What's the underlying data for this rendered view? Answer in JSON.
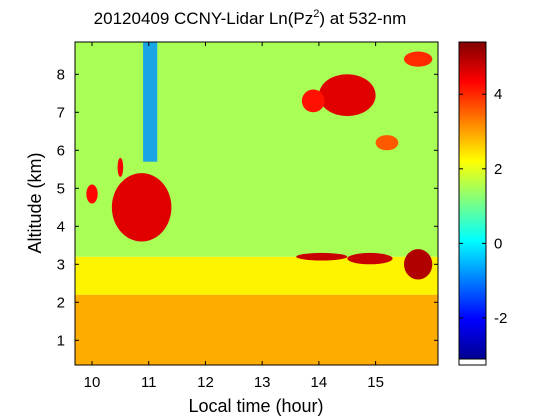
{
  "chart_data": {
    "type": "heatmap",
    "title": {
      "prefix": "20120409 CCNY-Lidar Ln(Pz",
      "superscript": "2",
      "suffix": ") at 532-nm"
    },
    "xlabel": "Local time (hour)",
    "ylabel": "Altitude (km)",
    "xlim": [
      9.7,
      16.1
    ],
    "ylim": [
      0.35,
      8.85
    ],
    "xticks": [
      10,
      11,
      12,
      13,
      14,
      15
    ],
    "xtick_labels": [
      "10",
      "11",
      "12",
      "13",
      "14",
      "15"
    ],
    "yticks": [
      1,
      2,
      3,
      4,
      5,
      6,
      7,
      8
    ],
    "ytick_labels": [
      "1",
      "2",
      "3",
      "4",
      "5",
      "6",
      "7",
      "8"
    ],
    "colorbar": {
      "range": [
        -3.1,
        5.4
      ],
      "ticks": [
        -2,
        0,
        2,
        4
      ],
      "tick_labels": [
        "-2",
        "0",
        "2",
        "4"
      ],
      "colormap": "jet"
    },
    "regions": [
      {
        "feature": "boundary layer",
        "time": [
          9.7,
          16.1
        ],
        "altitude": [
          0.35,
          2.2
        ],
        "value": 2.9
      },
      {
        "feature": "mixed layer",
        "time": [
          9.7,
          16.1
        ],
        "altitude": [
          2.2,
          3.2
        ],
        "value": 2.3
      },
      {
        "feature": "free troposphere",
        "time": [
          9.7,
          16.1
        ],
        "altitude": [
          3.2,
          8.85
        ],
        "value": 1.5
      },
      {
        "feature": "low signal column",
        "time": [
          10.9,
          11.15
        ],
        "altitude": [
          5.7,
          8.85
        ],
        "value": -0.8
      },
      {
        "feature": "cloud",
        "time": [
          10.35,
          11.4
        ],
        "altitude": [
          3.6,
          5.4
        ],
        "value": 4.6
      },
      {
        "feature": "cloud",
        "time": [
          10.45,
          10.55
        ],
        "altitude": [
          5.3,
          5.8
        ],
        "value": 4.4
      },
      {
        "feature": "cloud",
        "time": [
          9.9,
          10.1
        ],
        "altitude": [
          4.6,
          5.1
        ],
        "value": 4.3
      },
      {
        "feature": "cloud",
        "time": [
          14.0,
          15.0
        ],
        "altitude": [
          6.9,
          8.0
        ],
        "value": 4.6
      },
      {
        "feature": "cloud",
        "time": [
          13.7,
          14.1
        ],
        "altitude": [
          7.0,
          7.6
        ],
        "value": 4.2
      },
      {
        "feature": "cloud",
        "time": [
          15.5,
          16.0
        ],
        "altitude": [
          8.2,
          8.6
        ],
        "value": 4.0
      },
      {
        "feature": "cloud",
        "time": [
          15.0,
          15.4
        ],
        "altitude": [
          6.0,
          6.4
        ],
        "value": 3.6
      },
      {
        "feature": "cloud",
        "time": [
          13.6,
          14.5
        ],
        "altitude": [
          3.1,
          3.3
        ],
        "value": 4.8
      },
      {
        "feature": "cloud",
        "time": [
          14.5,
          15.3
        ],
        "altitude": [
          3.0,
          3.3
        ],
        "value": 4.8
      },
      {
        "feature": "cloud",
        "time": [
          15.5,
          16.0
        ],
        "altitude": [
          2.6,
          3.4
        ],
        "value": 5.0
      }
    ]
  }
}
